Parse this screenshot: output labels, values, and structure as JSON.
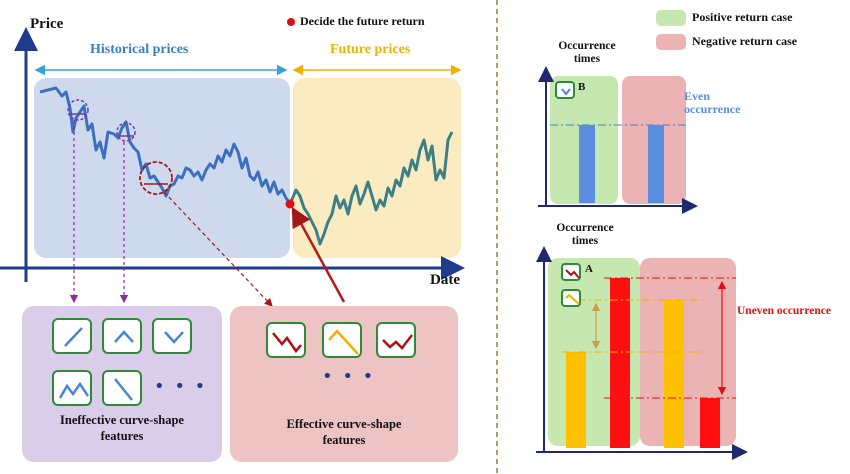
{
  "colors": {
    "historical_bg": "#cfd9ee",
    "future_bg": "#faecc0",
    "ineffective_bg": "#d9cdea",
    "effective_bg": "#eec3c3",
    "positive_bg": "#c7e7b1",
    "negative_bg": "#ebb3b3",
    "line_blue": "#3b6fc0",
    "line_teal": "#3d7f86",
    "bar_blue": "#5b8de0",
    "bar_yellow": "#ffc000",
    "bar_red": "#ff1010"
  },
  "main_chart": {
    "y_axis_label": "Price",
    "x_axis_label": "Date",
    "legend_decide": "Decide the future return",
    "historical_label": "Historical prices",
    "future_label": "Future prices"
  },
  "feature_boxes": {
    "ineffective_label_line1": "Ineffective curve-shape",
    "ineffective_label_line2": "features",
    "effective_label_line1": "Effective curve-shape",
    "effective_label_line2": "features",
    "ellipsis": "• • •"
  },
  "legend": {
    "positive": "Positive return case",
    "negative": "Negative return case"
  },
  "top_chart": {
    "y_label_line1": "Occurrence",
    "y_label_line2": "times",
    "icon_letter": "B",
    "annotation_line1": "Even",
    "annotation_line2": "occurrence"
  },
  "bottom_chart": {
    "y_label_line1": "Occurrence",
    "y_label_line2": "times",
    "icon_letter": "A",
    "annotation": "Uneven occurrence"
  }
}
